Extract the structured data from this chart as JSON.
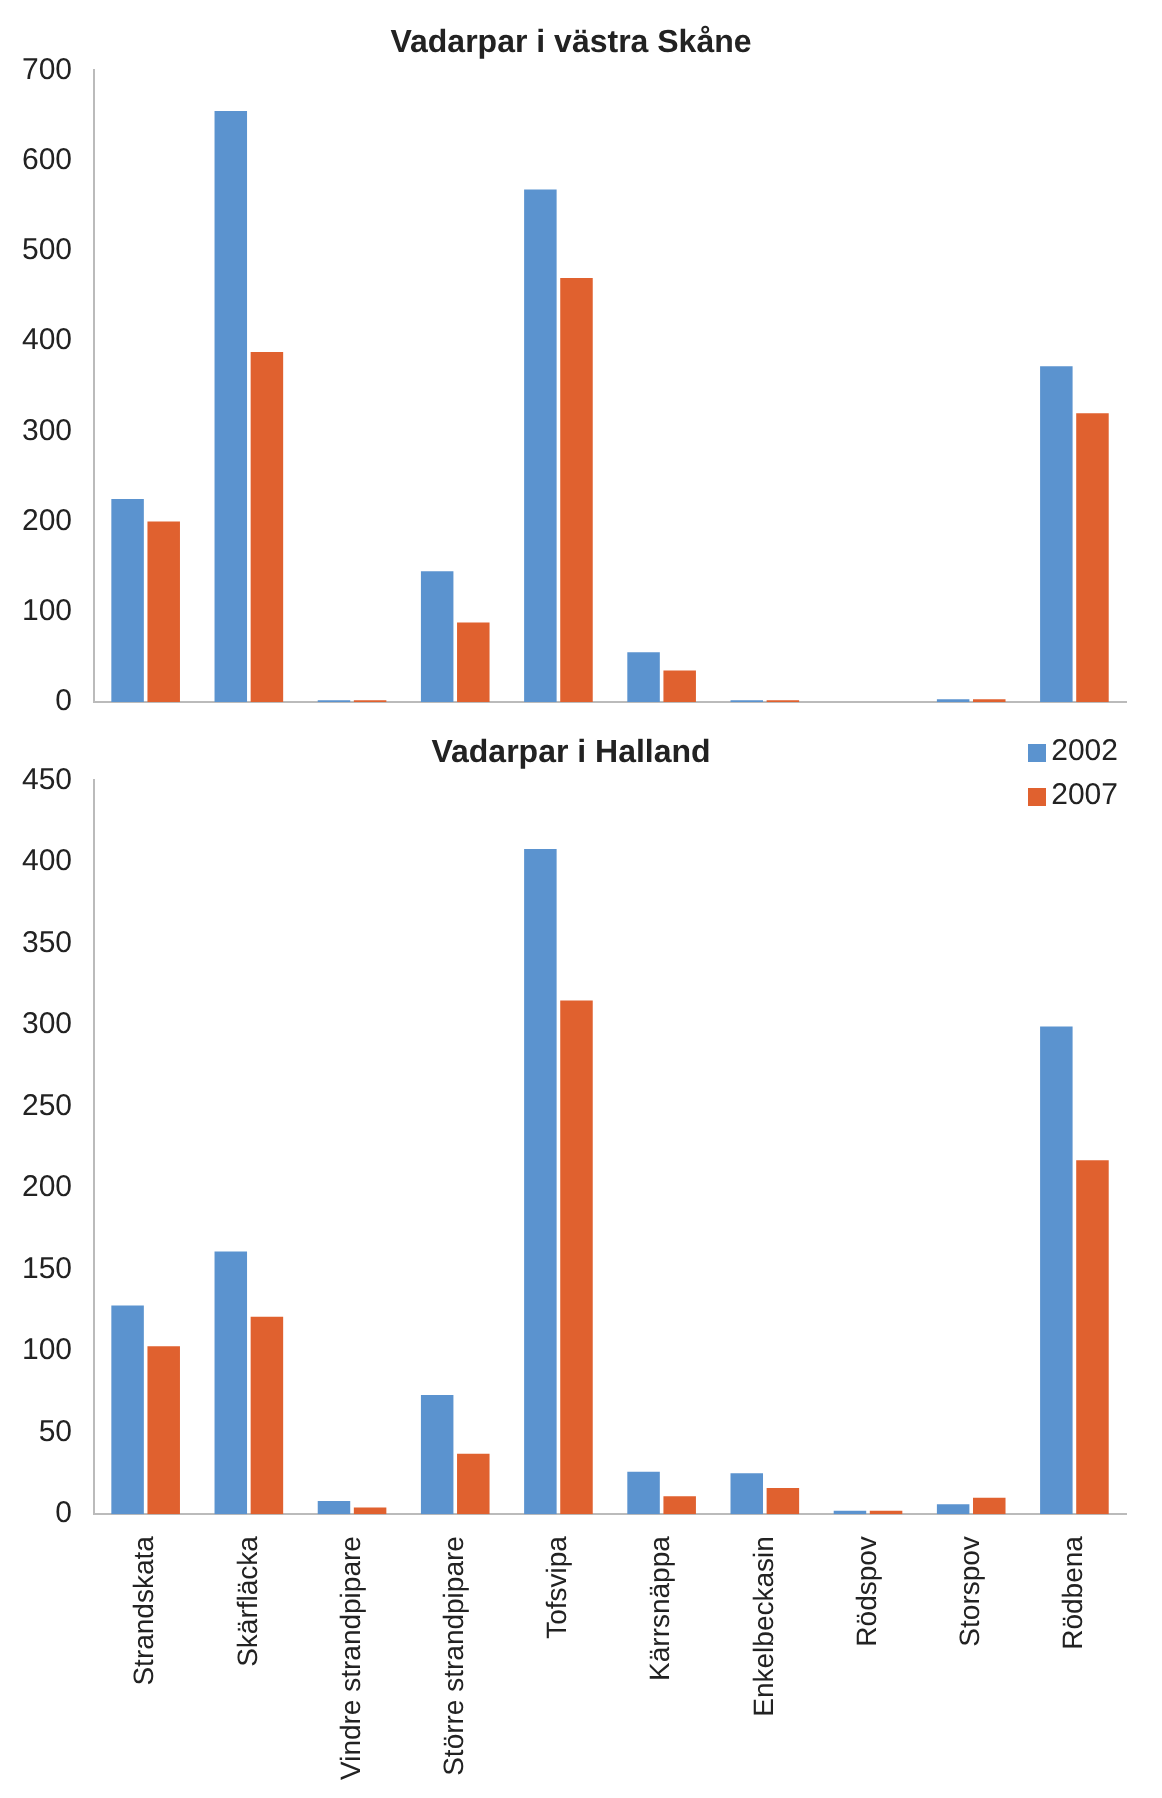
{
  "chart_data": [
    {
      "type": "bar",
      "title": "Vadarpar i västra Skåne",
      "categories": [
        null,
        null,
        null,
        null,
        null,
        null,
        null,
        null,
        null,
        null
      ],
      "series": [
        {
          "color": "#5b93cf",
          "values": [
            225,
            655,
            2,
            145,
            568,
            55,
            2,
            null,
            3,
            372
          ]
        },
        {
          "color": "#e0612f",
          "values": [
            200,
            388,
            2,
            88,
            470,
            35,
            2,
            null,
            3,
            320
          ]
        }
      ],
      "ylim": [
        0,
        700
      ],
      "yticks": [
        0,
        100,
        200,
        300,
        400,
        500,
        600,
        700
      ],
      "tick_labels": "y",
      "grid": false,
      "legend": false
    },
    {
      "type": "bar",
      "title": "Vadarpar i Halland",
      "categories": [
        "Strandskata",
        "Skärfläcka",
        "Vindre strandpipare",
        "Större strandpipare",
        "Tofsvipa",
        "Kärrsnäppa",
        "Enkelbeckasin",
        "Rödspov",
        "Storspov",
        "Rödbena"
      ],
      "series": [
        {
          "name": "2002",
          "color": "#5b93cf",
          "values": [
            128,
            161,
            8,
            73,
            408,
            26,
            25,
            2,
            6,
            299
          ]
        },
        {
          "name": "2007",
          "color": "#e0612f",
          "values": [
            103,
            121,
            4,
            37,
            315,
            11,
            16,
            2,
            10,
            217
          ]
        }
      ],
      "ylim": [
        0,
        450
      ],
      "yticks": [
        0,
        50,
        100,
        150,
        200,
        250,
        300,
        350,
        400,
        450
      ],
      "grid": false,
      "legend": "top right"
    }
  ]
}
